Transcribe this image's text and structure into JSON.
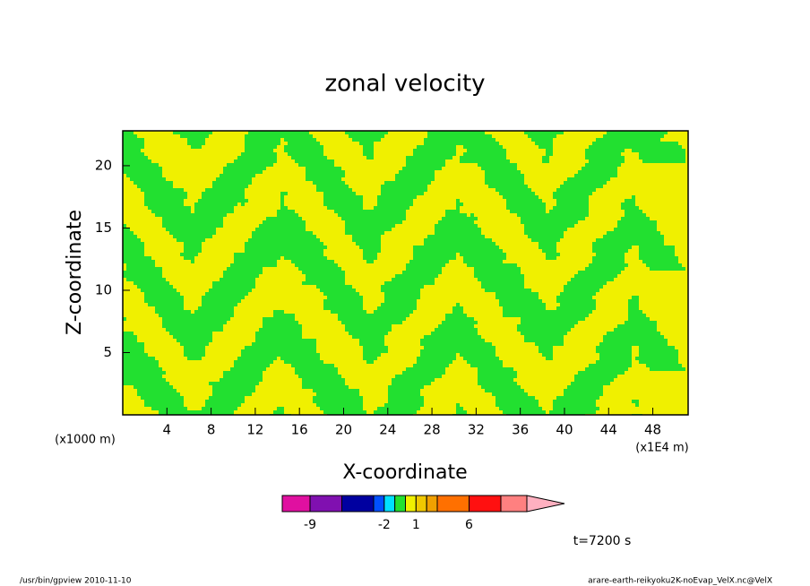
{
  "chart_data": {
    "type": "contour",
    "title": "zonal velocity",
    "x_label": "X-coordinate",
    "y_label": "Z-coordinate",
    "x_unit_left": "(x1000 m)",
    "x_unit_right": "(x1E4 m)",
    "xlim": [
      0,
      51.2
    ],
    "xticks": [
      4,
      8,
      12,
      16,
      20,
      24,
      28,
      32,
      36,
      40,
      44,
      48
    ],
    "ylim": [
      0,
      22.8
    ],
    "yticks": [
      5,
      10,
      15,
      20
    ],
    "field_colors": {
      "negative": "#22e030",
      "positive": "#f0f000"
    },
    "colorbar": {
      "levels": [
        -9,
        -6,
        -3,
        -2,
        -1,
        0,
        1,
        2,
        3,
        6,
        9
      ],
      "colors": [
        "#e010a0",
        "#8010b0",
        "#0000a0",
        "#0050ff",
        "#00e0ff",
        "#22e030",
        "#f0f000",
        "#f0c800",
        "#f0a000",
        "#ff7000",
        "#ff1010",
        "#ff8080",
        "#ffb0c0"
      ],
      "ticks": [
        -9,
        -2,
        1,
        6
      ]
    },
    "time_label": "t=7200 s",
    "footer_left": "/usr/bin/gpview   2010-11-10",
    "footer_right": "arare-earth-reikyoku2K-noEvap_VelX.nc@VelX"
  }
}
